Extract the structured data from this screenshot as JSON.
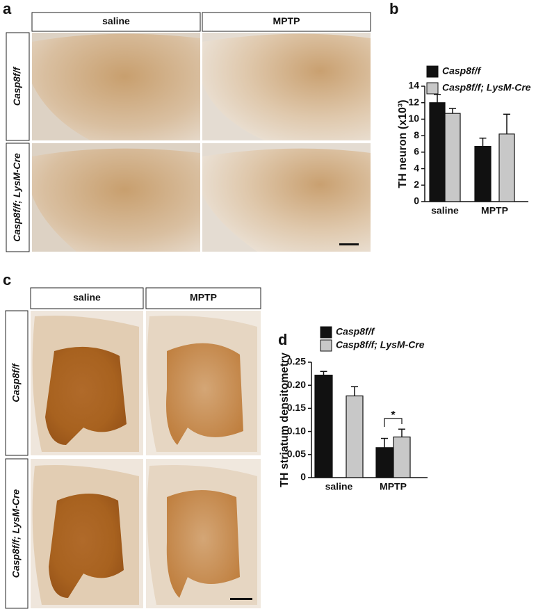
{
  "panels": {
    "a": {
      "label": "a",
      "columns": [
        "saline",
        "MPTP"
      ],
      "rows": [
        "Casp8f/f",
        "Casp8f/f; LysM-Cre"
      ]
    },
    "c": {
      "label": "c",
      "columns": [
        "saline",
        "MPTP"
      ],
      "rows": [
        "Casp8f/f",
        "Casp8f/f; LysM-Cre"
      ]
    }
  },
  "chart_data": [
    {
      "type": "bar",
      "panel_label": "b",
      "y_label": "TH neuron (x10³)",
      "categories": [
        "saline",
        "MPTP"
      ],
      "series": [
        {
          "name": "Casp8f/f",
          "color": "#111111",
          "values": [
            12.0,
            6.7
          ],
          "errors": [
            1.0,
            1.0
          ]
        },
        {
          "name": "Casp8f/f; LysM-Cre",
          "color": "#c8c8c8",
          "values": [
            10.7,
            8.2
          ],
          "errors": [
            0.6,
            2.4
          ]
        }
      ],
      "ylim": [
        0,
        14
      ],
      "yticks": [
        0,
        2,
        4,
        6,
        8,
        10,
        12,
        14
      ]
    },
    {
      "type": "bar",
      "panel_label": "d",
      "y_label": "TH striatum densitometry",
      "categories": [
        "saline",
        "MPTP"
      ],
      "series": [
        {
          "name": "Casp8f/f",
          "color": "#111111",
          "values": [
            0.222,
            0.065
          ],
          "errors": [
            0.008,
            0.02
          ]
        },
        {
          "name": "Casp8f/f; LysM-Cre",
          "color": "#c8c8c8",
          "values": [
            0.177,
            0.088
          ],
          "errors": [
            0.02,
            0.017
          ]
        }
      ],
      "ylim": [
        0,
        0.25
      ],
      "yticks": [
        0,
        0.05,
        {
          "value": 0.1,
          "label": "0.10"
        },
        0.15,
        {
          "value": 0.2,
          "label": "0.20"
        },
        0.25
      ],
      "annotation": "*"
    }
  ]
}
